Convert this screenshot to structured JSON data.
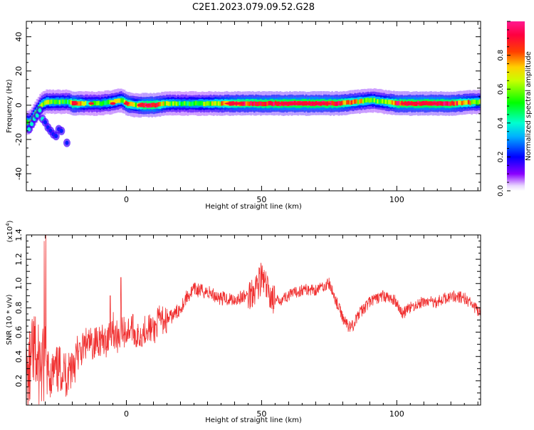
{
  "chart_data": [
    {
      "type": "heatmap",
      "title": "C2E1.2023.079.09.52.G28",
      "xlabel": "Height of straight line (km)",
      "ylabel": "Frequency (Hz)",
      "xlim": [
        -37,
        131
      ],
      "ylim": [
        -50,
        49
      ],
      "x_ticks": [
        0,
        50,
        100
      ],
      "y_ticks": [
        40,
        20,
        0,
        -20,
        -40
      ],
      "colorbar": {
        "label": "Normalized spectral amplitude",
        "range": [
          0,
          1
        ],
        "ticks": [
          0.0,
          0.2,
          0.4,
          0.6,
          0.8
        ]
      },
      "ridge": {
        "x": [
          -36,
          -34,
          -32,
          -30,
          -28,
          -25,
          -22,
          -20,
          -15,
          -10,
          -5,
          -2,
          0,
          3,
          6,
          10,
          15,
          20,
          30,
          40,
          50,
          60,
          70,
          78,
          85,
          90,
          95,
          100,
          110,
          120,
          131
        ],
        "freq": [
          -10,
          -5,
          0,
          2,
          2,
          2,
          2,
          1,
          1,
          1,
          2,
          3,
          1,
          0,
          0,
          0,
          1,
          1,
          1,
          1,
          1,
          1,
          1,
          1,
          2,
          3,
          2,
          1,
          1,
          1,
          2
        ],
        "amplitude": [
          0.55,
          0.6,
          0.6,
          0.6,
          0.55,
          0.55,
          0.5,
          0.9,
          0.5,
          0.5,
          0.6,
          0.6,
          0.85,
          0.6,
          0.9,
          0.9,
          0.6,
          0.5,
          0.6,
          0.85,
          0.9,
          0.95,
          0.95,
          0.9,
          0.7,
          0.6,
          0.6,
          0.9,
          0.95,
          0.9,
          0.6
        ]
      }
    },
    {
      "type": "line",
      "title": "",
      "xlabel": "Height of straight line (km)",
      "ylabel": "SNR (10 * v/v)",
      "y_multiplier": "(x10",
      "y_multiplier_exp": "4",
      "xlim": [
        -37,
        131
      ],
      "ylim": [
        0,
        1.4
      ],
      "x_ticks": [
        0,
        50,
        100
      ],
      "y_ticks": [
        0.2,
        0.4,
        0.6,
        0.8,
        1.0,
        1.2,
        1.4
      ],
      "color": "#f03030",
      "series": [
        {
          "x": [
            -37,
            -36,
            -35,
            -34,
            -33,
            -32,
            -31,
            -30,
            -28,
            -26,
            -24,
            -22,
            -20,
            -18,
            -15,
            -12,
            -10,
            -8,
            -6,
            -5,
            -4,
            -2,
            0,
            2,
            4,
            6,
            8,
            10,
            12,
            15,
            18,
            20,
            22,
            25,
            30,
            35,
            40,
            45,
            48,
            50,
            52,
            55,
            60,
            65,
            70,
            75,
            80,
            82,
            84,
            86,
            90,
            95,
            100,
            102,
            105,
            110,
            115,
            120,
            125,
            128,
            131
          ],
          "y": [
            0.15,
            0.25,
            0.35,
            0.45,
            0.3,
            0.35,
            0.28,
            0.3,
            0.25,
            0.28,
            0.3,
            0.25,
            0.35,
            0.4,
            0.5,
            0.5,
            0.55,
            0.5,
            0.6,
            0.65,
            0.55,
            0.6,
            0.6,
            0.65,
            0.55,
            0.6,
            0.65,
            0.6,
            0.7,
            0.7,
            0.75,
            0.8,
            0.88,
            0.95,
            0.93,
            0.88,
            0.87,
            0.9,
            0.98,
            1.05,
            0.95,
            0.85,
            0.9,
            0.95,
            0.95,
            1.0,
            0.72,
            0.65,
            0.66,
            0.75,
            0.85,
            0.9,
            0.85,
            0.75,
            0.8,
            0.85,
            0.85,
            0.9,
            0.88,
            0.82,
            0.75
          ]
        }
      ]
    }
  ]
}
